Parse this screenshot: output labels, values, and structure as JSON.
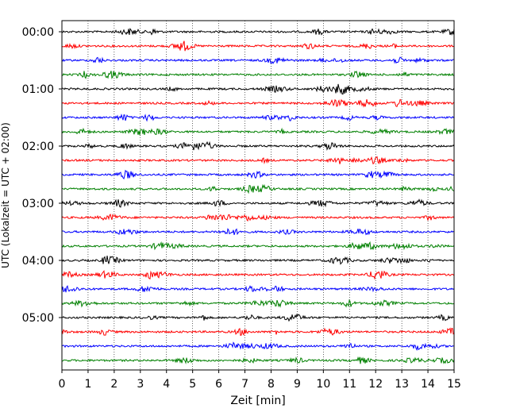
{
  "chart_data": {
    "type": "line",
    "title": "",
    "xlabel": "Zeit  [min]",
    "ylabel": "UTC (Lokalzeit = UTC + 02:00)",
    "xlim": [
      0,
      15
    ],
    "x_ticks": [
      0,
      1,
      2,
      3,
      4,
      5,
      6,
      7,
      8,
      9,
      10,
      11,
      12,
      13,
      14,
      15
    ],
    "x_tick_labels": [
      "0",
      "1",
      "2",
      "3",
      "4",
      "5",
      "6",
      "7",
      "8",
      "9",
      "10",
      "11",
      "12",
      "13",
      "14",
      "15"
    ],
    "y_ticks_hours": [
      0,
      1,
      2,
      3,
      4,
      5
    ],
    "y_tick_labels": [
      "00:00",
      "01:00",
      "02:00",
      "03:00",
      "04:00",
      "05:00"
    ],
    "trace_interval_minutes": 15,
    "grid": "vertical dotted lines at each minute",
    "legend": "none",
    "colors_cycle": [
      "#000000",
      "#ff0000",
      "#0000ff",
      "#008000"
    ],
    "series": [
      {
        "start": "00:00",
        "color": "#000000"
      },
      {
        "start": "00:15",
        "color": "#ff0000"
      },
      {
        "start": "00:30",
        "color": "#0000ff"
      },
      {
        "start": "00:45",
        "color": "#008000"
      },
      {
        "start": "01:00",
        "color": "#000000"
      },
      {
        "start": "01:15",
        "color": "#ff0000"
      },
      {
        "start": "01:30",
        "color": "#0000ff"
      },
      {
        "start": "01:45",
        "color": "#008000"
      },
      {
        "start": "02:00",
        "color": "#000000"
      },
      {
        "start": "02:15",
        "color": "#ff0000"
      },
      {
        "start": "02:30",
        "color": "#0000ff"
      },
      {
        "start": "02:45",
        "color": "#008000"
      },
      {
        "start": "03:00",
        "color": "#000000"
      },
      {
        "start": "03:15",
        "color": "#ff0000"
      },
      {
        "start": "03:30",
        "color": "#0000ff"
      },
      {
        "start": "03:45",
        "color": "#008000"
      },
      {
        "start": "04:00",
        "color": "#000000"
      },
      {
        "start": "04:15",
        "color": "#ff0000"
      },
      {
        "start": "04:30",
        "color": "#0000ff"
      },
      {
        "start": "04:45",
        "color": "#008000"
      },
      {
        "start": "05:00",
        "color": "#000000"
      },
      {
        "start": "05:15",
        "color": "#ff0000"
      },
      {
        "start": "05:30",
        "color": "#0000ff"
      },
      {
        "start": "05:45",
        "color": "#008000"
      }
    ]
  }
}
